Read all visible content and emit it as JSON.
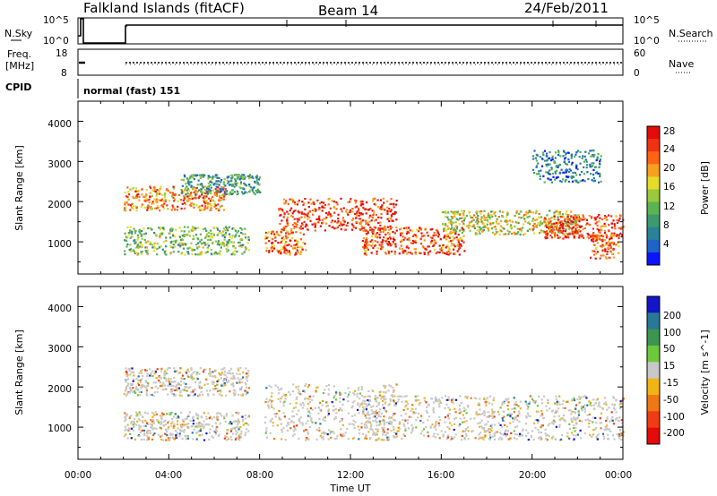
{
  "header": {
    "station": "Falkland Islands (fitACF)",
    "beam": "Beam 14",
    "date": "24/Feb/2011"
  },
  "noise_panel": {
    "left_label": "N.Sky",
    "right_label": "N.Search",
    "left_ticks": [
      "10^5",
      "10^0"
    ],
    "right_ticks": [
      "10^5",
      "10^0"
    ]
  },
  "freq_panel": {
    "left_label_line1": "Freq.",
    "left_label_line2": "[MHz]",
    "right_label": "Nave",
    "left_ticks": [
      "18",
      "8"
    ],
    "right_ticks": [
      "60",
      "0"
    ]
  },
  "cpid": {
    "label": "CPID",
    "program": "normal (fast) 151"
  },
  "x_axis": {
    "title": "Time UT",
    "ticks": [
      "00:00",
      "04:00",
      "08:00",
      "12:00",
      "16:00",
      "20:00",
      "00:00"
    ]
  },
  "chart_data": [
    {
      "type": "heatmap",
      "name": "power",
      "ylabel": "Slant Range [km]",
      "yticks": [
        "1000",
        "2000",
        "3000",
        "4000"
      ],
      "ylim": [
        200,
        4500
      ],
      "xlim_hours": [
        0,
        24
      ],
      "colorbar": {
        "title": "Power [dB]",
        "ticks": [
          "4",
          "8",
          "12",
          "16",
          "20",
          "24",
          "28"
        ],
        "colors": [
          "#0a14ff",
          "#1e64c8",
          "#28829a",
          "#3c9a6e",
          "#5ab450",
          "#9bc83c",
          "#e6dc28",
          "#f5a01e",
          "#ff6414",
          "#f03214",
          "#e60a0a"
        ]
      },
      "bands": [
        {
          "t": [
            2.0,
            6.5
          ],
          "r": [
            1800,
            2400
          ],
          "level": 0.75
        },
        {
          "t": [
            2.0,
            7.5
          ],
          "r": [
            700,
            1400
          ],
          "level": 0.45
        },
        {
          "t": [
            4.5,
            8.0
          ],
          "r": [
            2200,
            2700
          ],
          "level": 0.3
        },
        {
          "t": [
            8.2,
            10.0
          ],
          "r": [
            700,
            1300
          ],
          "level": 0.8
        },
        {
          "t": [
            8.8,
            14.0
          ],
          "r": [
            1300,
            2100
          ],
          "level": 0.9
        },
        {
          "t": [
            12.5,
            17.0
          ],
          "r": [
            700,
            1400
          ],
          "level": 0.85
        },
        {
          "t": [
            16.0,
            22.0
          ],
          "r": [
            1200,
            1800
          ],
          "level": 0.55
        },
        {
          "t": [
            20.5,
            24.0
          ],
          "r": [
            1100,
            1700
          ],
          "level": 0.9
        },
        {
          "t": [
            22.5,
            23.8
          ],
          "r": [
            600,
            1200
          ],
          "level": 0.8
        },
        {
          "t": [
            20.0,
            23.0
          ],
          "r": [
            2500,
            3300
          ],
          "level": 0.2
        }
      ]
    },
    {
      "type": "heatmap",
      "name": "velocity",
      "ylabel": "Slant Range [km]",
      "yticks": [
        "1000",
        "2000",
        "3000",
        "4000"
      ],
      "ylim": [
        200,
        4500
      ],
      "xlim_hours": [
        0,
        24
      ],
      "colorbar": {
        "title": "Velocity [m s^-1]",
        "ticks": [
          "200",
          "100",
          "50",
          "15",
          "-15",
          "-50",
          "-100",
          "-200"
        ],
        "colors": [
          "#1414c8",
          "#287896",
          "#3c9650",
          "#6ec83c",
          "#c8c8c8",
          "#f0b414",
          "#f07814",
          "#f03c14",
          "#e60a0a"
        ]
      },
      "bands": [
        {
          "t": [
            2.0,
            7.5
          ],
          "r": [
            1800,
            2500
          ],
          "level": 0.5
        },
        {
          "t": [
            2.0,
            7.5
          ],
          "r": [
            700,
            1400
          ],
          "level": 0.5
        },
        {
          "t": [
            8.2,
            14.0
          ],
          "r": [
            700,
            2100
          ],
          "level": 0.5
        },
        {
          "t": [
            12.5,
            24.0
          ],
          "r": [
            700,
            1800
          ],
          "level": 0.5
        }
      ]
    }
  ]
}
